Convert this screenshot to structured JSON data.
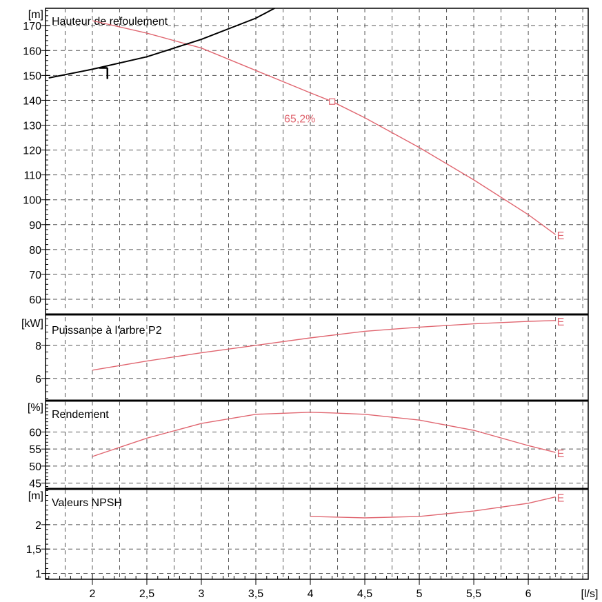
{
  "chart_data": [
    {
      "type": "line",
      "title": "Hauteur de refoulement",
      "unit": "[m]",
      "ylim": [
        55,
        177
      ],
      "yticks": [
        60,
        70,
        80,
        90,
        100,
        110,
        120,
        130,
        140,
        150,
        160,
        170
      ],
      "ytick_labels": [
        "60",
        "70",
        "80",
        "90",
        "100",
        "110",
        "120",
        "130",
        "140",
        "150",
        "160",
        "170"
      ],
      "grid": true,
      "series": [
        {
          "color": "#e06670",
          "x": [
            2.0,
            2.5,
            3.0,
            3.5,
            4.0,
            4.2,
            4.5,
            5.0,
            5.5,
            6.0,
            6.25
          ],
          "y": [
            172,
            167,
            161,
            152,
            143,
            139.5,
            133,
            121,
            108,
            94,
            86
          ],
          "end_marker": "E"
        },
        {
          "color": "#000000",
          "x": [
            1.6,
            2.0,
            2.5,
            3.0,
            3.5,
            3.8,
            4.05
          ],
          "y": [
            149,
            152.5,
            157.5,
            164.5,
            173,
            180,
            186
          ]
        }
      ],
      "annotations": [
        {
          "text": "65,2%",
          "x": 4.0,
          "y": 135.5,
          "color": "#e06670"
        }
      ],
      "operating_point": {
        "x": 4.2,
        "y": 139.5,
        "color": "#e06670"
      },
      "t_marker": {
        "x": 2.1,
        "y": 153
      }
    },
    {
      "type": "line",
      "title": "Puissance à l'arbre P2",
      "unit": "[kW]",
      "ylim": [
        4.7,
        9.7
      ],
      "yticks": [
        6,
        8
      ],
      "ytick_labels": [
        "6",
        "8"
      ],
      "grid": true,
      "series": [
        {
          "color": "#e06670",
          "x": [
            2.0,
            2.5,
            3.0,
            3.5,
            4.0,
            4.5,
            5.0,
            5.5,
            6.0,
            6.25
          ],
          "y": [
            6.5,
            7.05,
            7.55,
            8.0,
            8.45,
            8.85,
            9.1,
            9.3,
            9.45,
            9.5
          ],
          "end_marker": "E"
        }
      ]
    },
    {
      "type": "line",
      "title": "Rendement",
      "unit": "[%]",
      "ylim": [
        43.5,
        69
      ],
      "yticks": [
        45,
        50,
        55,
        60
      ],
      "ytick_labels": [
        "45",
        "50",
        "55",
        "60"
      ],
      "grid": true,
      "series": [
        {
          "color": "#e06670",
          "x": [
            2.0,
            2.5,
            3.0,
            3.5,
            4.0,
            4.2,
            4.5,
            5.0,
            5.5,
            6.0,
            6.25
          ],
          "y": [
            52.8,
            58.2,
            62.5,
            65.2,
            65.8,
            65.6,
            65.2,
            63.5,
            60.5,
            56.0,
            54.0
          ],
          "end_marker": "E"
        }
      ]
    },
    {
      "type": "line",
      "title": "Valeurs NPSH",
      "unit": "[m]",
      "ylim": [
        0.88,
        2.72
      ],
      "yticks": [
        1,
        1.5,
        2
      ],
      "ytick_labels": [
        "1",
        "1,5",
        "2"
      ],
      "grid": true,
      "series": [
        {
          "color": "#e06670",
          "x": [
            4.0,
            4.5,
            5.0,
            5.5,
            6.0,
            6.25
          ],
          "y": [
            2.17,
            2.14,
            2.17,
            2.28,
            2.44,
            2.57
          ],
          "end_marker": "E"
        }
      ]
    }
  ],
  "x_axis": {
    "xlim": [
      1.57,
      6.55
    ],
    "ticks": [
      2,
      2.5,
      3,
      3.5,
      4,
      4.5,
      5,
      5.5,
      6
    ],
    "tick_labels": [
      "2",
      "2,5",
      "3",
      "3,5",
      "4",
      "4,5",
      "5",
      "5,5",
      "6"
    ],
    "unit": "[l/s]"
  }
}
